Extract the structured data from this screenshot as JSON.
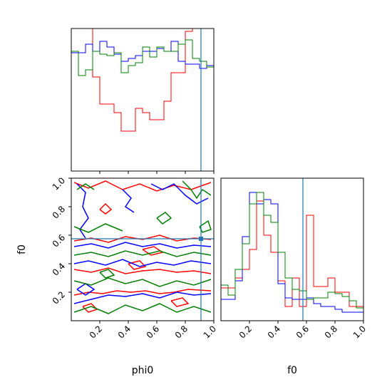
{
  "chart_data": {
    "type": "corner",
    "parameters": [
      "phi0",
      "f0"
    ],
    "truths": {
      "phi0": 0.91,
      "f0": 0.575
    },
    "series_colors": {
      "red": "#ff0000",
      "blue": "#0000ff",
      "green": "#008000"
    },
    "truth_color": "#1f77b4",
    "ticks": {
      "phi0": [
        "0.2",
        "0.4",
        "0.6",
        "0.8",
        "1.0"
      ],
      "f0": [
        "0.2",
        "0.4",
        "0.6",
        "0.8",
        "1.0"
      ]
    },
    "tick_values": [
      0.2,
      0.4,
      0.6,
      0.8,
      1.0
    ],
    "hist_phi0": {
      "ylim": [
        0,
        1.0
      ],
      "bins": 20,
      "red": [
        1.05,
        1.05,
        1.05,
        0.66,
        0.47,
        0.47,
        0.41,
        0.28,
        0.28,
        0.44,
        0.41,
        0.36,
        0.36,
        0.49,
        0.69,
        0.69,
        0.98,
        1.02,
        1.05,
        1.05
      ],
      "blue": [
        0.83,
        0.83,
        0.89,
        0.84,
        0.91,
        0.87,
        0.82,
        0.77,
        0.79,
        0.81,
        0.84,
        0.84,
        0.86,
        0.84,
        0.91,
        0.77,
        0.75,
        0.75,
        0.72,
        0.74
      ],
      "green": [
        0.84,
        0.67,
        0.71,
        0.84,
        0.82,
        0.81,
        0.83,
        0.69,
        0.74,
        0.76,
        0.87,
        0.8,
        0.87,
        0.84,
        0.84,
        0.89,
        0.92,
        0.79,
        0.77,
        0.73
      ]
    },
    "hist_f0": {
      "ylim": [
        0,
        1.0
      ],
      "bins": 20,
      "red": [
        0.23,
        0.23,
        0.3,
        0.36,
        0.5,
        0.84,
        0.6,
        0.48,
        0.28,
        0.1,
        0.3,
        0.1,
        0.74,
        0.24,
        0.24,
        0.3,
        0.2,
        0.2,
        0.1,
        0.1
      ],
      "blue": [
        0.15,
        0.15,
        0.28,
        0.59,
        0.9,
        0.82,
        0.85,
        0.82,
        0.26,
        0.16,
        0.15,
        0.15,
        0.16,
        0.12,
        0.1,
        0.1,
        0.08,
        0.06,
        0.06,
        0.06
      ],
      "green": [
        0.25,
        0.18,
        0.36,
        0.54,
        0.82,
        0.9,
        0.74,
        0.69,
        0.48,
        0.3,
        0.22,
        0.21,
        0.15,
        0.16,
        0.16,
        0.2,
        0.19,
        0.17,
        0.14,
        0.09
      ]
    },
    "contours": {
      "red": [
        [
          [
            0.02,
            0.18
          ],
          [
            0.12,
            0.2
          ],
          [
            0.22,
            0.19
          ],
          [
            0.32,
            0.21
          ],
          [
            0.42,
            0.2
          ],
          [
            0.52,
            0.21
          ],
          [
            0.62,
            0.19
          ],
          [
            0.72,
            0.2
          ],
          [
            0.82,
            0.22
          ],
          [
            0.98,
            0.21
          ]
        ],
        [
          [
            0.02,
            0.36
          ],
          [
            0.14,
            0.34
          ],
          [
            0.26,
            0.37
          ],
          [
            0.38,
            0.33
          ],
          [
            0.5,
            0.35
          ],
          [
            0.62,
            0.36
          ],
          [
            0.74,
            0.34
          ],
          [
            0.86,
            0.35
          ],
          [
            0.98,
            0.33
          ]
        ],
        [
          [
            0.02,
            0.56
          ],
          [
            0.14,
            0.58
          ],
          [
            0.26,
            0.55
          ],
          [
            0.38,
            0.59
          ],
          [
            0.5,
            0.57
          ],
          [
            0.62,
            0.6
          ],
          [
            0.74,
            0.56
          ],
          [
            0.86,
            0.58
          ],
          [
            0.98,
            0.57
          ]
        ],
        [
          [
            0.02,
            0.97
          ],
          [
            0.12,
            0.93
          ],
          [
            0.24,
            0.98
          ],
          [
            0.36,
            0.92
          ],
          [
            0.48,
            0.96
          ],
          [
            0.6,
            0.91
          ],
          [
            0.72,
            0.95
          ],
          [
            0.84,
            0.92
          ],
          [
            0.98,
            0.97
          ]
        ],
        [
          [
            0.2,
            0.78
          ],
          [
            0.24,
            0.82
          ],
          [
            0.28,
            0.78
          ],
          [
            0.24,
            0.75
          ],
          [
            0.2,
            0.78
          ]
        ],
        [
          [
            0.5,
            0.5
          ],
          [
            0.58,
            0.52
          ],
          [
            0.64,
            0.48
          ],
          [
            0.56,
            0.46
          ],
          [
            0.5,
            0.5
          ]
        ],
        [
          [
            0.08,
            0.1
          ],
          [
            0.14,
            0.12
          ],
          [
            0.18,
            0.08
          ],
          [
            0.12,
            0.06
          ],
          [
            0.08,
            0.1
          ]
        ],
        [
          [
            0.4,
            0.4
          ],
          [
            0.48,
            0.42
          ],
          [
            0.52,
            0.38
          ],
          [
            0.44,
            0.36
          ],
          [
            0.4,
            0.4
          ]
        ],
        [
          [
            0.7,
            0.14
          ],
          [
            0.78,
            0.16
          ],
          [
            0.82,
            0.12
          ],
          [
            0.74,
            0.1
          ],
          [
            0.7,
            0.14
          ]
        ]
      ],
      "blue": [
        [
          [
            0.02,
            0.12
          ],
          [
            0.14,
            0.15
          ],
          [
            0.26,
            0.18
          ],
          [
            0.38,
            0.17
          ],
          [
            0.5,
            0.19
          ],
          [
            0.62,
            0.16
          ],
          [
            0.74,
            0.2
          ],
          [
            0.86,
            0.18
          ],
          [
            0.98,
            0.19
          ]
        ],
        [
          [
            0.02,
            0.4
          ],
          [
            0.12,
            0.42
          ],
          [
            0.24,
            0.39
          ],
          [
            0.36,
            0.43
          ],
          [
            0.48,
            0.38
          ],
          [
            0.6,
            0.41
          ],
          [
            0.72,
            0.39
          ],
          [
            0.84,
            0.42
          ],
          [
            0.98,
            0.4
          ]
        ],
        [
          [
            0.02,
            0.52
          ],
          [
            0.14,
            0.54
          ],
          [
            0.26,
            0.51
          ],
          [
            0.38,
            0.55
          ],
          [
            0.5,
            0.52
          ],
          [
            0.62,
            0.54
          ],
          [
            0.74,
            0.51
          ],
          [
            0.86,
            0.53
          ],
          [
            0.98,
            0.52
          ]
        ],
        [
          [
            0.04,
            0.96
          ],
          [
            0.1,
            0.9
          ],
          [
            0.08,
            0.8
          ],
          [
            0.12,
            0.72
          ],
          [
            0.06,
            0.64
          ],
          [
            0.1,
            0.58
          ]
        ],
        [
          [
            0.56,
            0.96
          ],
          [
            0.64,
            0.92
          ],
          [
            0.72,
            0.96
          ],
          [
            0.8,
            0.88
          ],
          [
            0.88,
            0.82
          ],
          [
            0.96,
            0.86
          ]
        ],
        [
          [
            0.36,
            0.92
          ],
          [
            0.42,
            0.86
          ],
          [
            0.38,
            0.8
          ],
          [
            0.44,
            0.76
          ]
        ],
        [
          [
            0.04,
            0.22
          ],
          [
            0.1,
            0.26
          ],
          [
            0.16,
            0.22
          ],
          [
            0.1,
            0.18
          ],
          [
            0.04,
            0.22
          ]
        ]
      ],
      "green": [
        [
          [
            0.02,
            0.06
          ],
          [
            0.14,
            0.1
          ],
          [
            0.26,
            0.05
          ],
          [
            0.38,
            0.11
          ],
          [
            0.5,
            0.07
          ],
          [
            0.62,
            0.12
          ],
          [
            0.74,
            0.06
          ],
          [
            0.86,
            0.1
          ],
          [
            0.98,
            0.06
          ]
        ],
        [
          [
            0.02,
            0.28
          ],
          [
            0.14,
            0.25
          ],
          [
            0.26,
            0.3
          ],
          [
            0.38,
            0.26
          ],
          [
            0.5,
            0.29
          ],
          [
            0.62,
            0.24
          ],
          [
            0.74,
            0.28
          ],
          [
            0.86,
            0.25
          ],
          [
            0.98,
            0.29
          ]
        ],
        [
          [
            0.02,
            0.46
          ],
          [
            0.14,
            0.48
          ],
          [
            0.26,
            0.45
          ],
          [
            0.38,
            0.49
          ],
          [
            0.5,
            0.46
          ],
          [
            0.62,
            0.49
          ],
          [
            0.74,
            0.45
          ],
          [
            0.86,
            0.48
          ],
          [
            0.98,
            0.46
          ]
        ],
        [
          [
            0.02,
            0.66
          ],
          [
            0.12,
            0.62
          ],
          [
            0.24,
            0.68
          ],
          [
            0.36,
            0.63
          ]
        ],
        [
          [
            0.78,
            0.98
          ],
          [
            0.84,
            0.92
          ],
          [
            0.88,
            0.86
          ],
          [
            0.92,
            0.92
          ],
          [
            0.98,
            0.88
          ]
        ],
        [
          [
            0.04,
            0.92
          ],
          [
            0.1,
            0.96
          ],
          [
            0.16,
            0.92
          ]
        ],
        [
          [
            0.6,
            0.72
          ],
          [
            0.66,
            0.76
          ],
          [
            0.7,
            0.72
          ],
          [
            0.64,
            0.68
          ],
          [
            0.6,
            0.72
          ]
        ],
        [
          [
            0.2,
            0.34
          ],
          [
            0.26,
            0.36
          ],
          [
            0.3,
            0.32
          ],
          [
            0.24,
            0.3
          ],
          [
            0.2,
            0.34
          ]
        ],
        [
          [
            0.9,
            0.66
          ],
          [
            0.96,
            0.7
          ],
          [
            0.98,
            0.64
          ],
          [
            0.92,
            0.62
          ],
          [
            0.9,
            0.66
          ]
        ]
      ]
    }
  }
}
